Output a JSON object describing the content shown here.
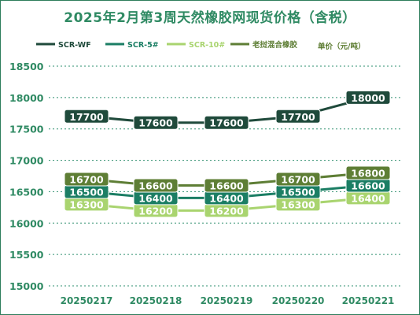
{
  "title": "2025年2月第3周天然橡胶网现货价格（含税）",
  "unit": "单价（元/吨）",
  "colors": {
    "SCR-WF": "#1f4a3b",
    "SCR-5#": "#1b7e64",
    "SCR-10#": "#a9d46f",
    "mixed": "#5e7e35",
    "grid": "#2e8f6f",
    "axis_text": "#2f8a63"
  },
  "chart_data": {
    "type": "line",
    "categories": [
      "20250217",
      "20250218",
      "20250219",
      "20250220",
      "20250221"
    ],
    "series": [
      {
        "name": "SCR-WF",
        "values": [
          17700,
          17600,
          17600,
          17700,
          18000
        ]
      },
      {
        "name": "SCR-5#",
        "values": [
          16500,
          16400,
          16400,
          16500,
          16600
        ]
      },
      {
        "name": "SCR-10#",
        "values": [
          16300,
          16200,
          16200,
          16300,
          16400
        ]
      },
      {
        "name": "老挝混合橡胶",
        "values": [
          16700,
          16600,
          16600,
          16700,
          16800
        ]
      }
    ],
    "y_ticks": [
      "18500",
      "18000",
      "17500",
      "17000",
      "16500",
      "16000",
      "15500",
      "15000"
    ],
    "ylim": [
      15000,
      18500
    ],
    "grid": true,
    "legend_position": "top-right"
  }
}
